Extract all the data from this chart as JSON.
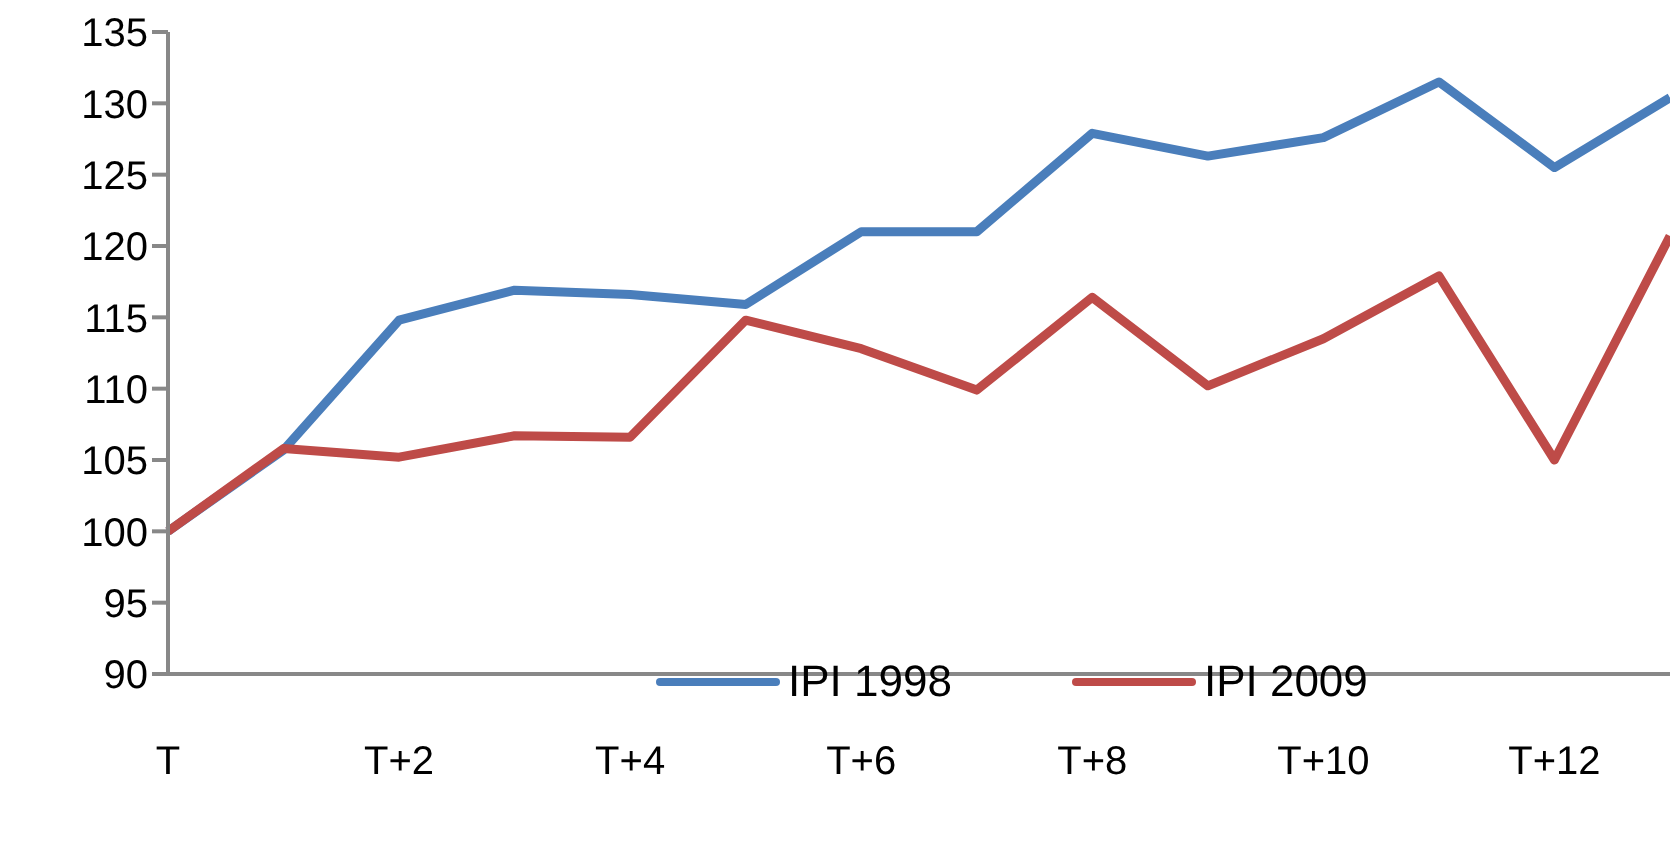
{
  "chart_data": {
    "type": "line",
    "categories": [
      "T",
      null,
      "T+2",
      null,
      "T+4",
      null,
      "T+6",
      null,
      "T+8",
      null,
      "T+10",
      null,
      "T+12",
      null
    ],
    "series": [
      {
        "name": "IPI 1998",
        "color": "#4a7ebb",
        "values": [
          100,
          105.7,
          114.8,
          116.9,
          116.6,
          115.9,
          121.0,
          121.0,
          127.9,
          126.3,
          127.6,
          131.5,
          125.5,
          130.4
        ]
      },
      {
        "name": "IPI 2009",
        "color": "#be4b48",
        "values": [
          100,
          105.8,
          105.2,
          106.7,
          106.6,
          114.8,
          112.8,
          109.9,
          116.4,
          110.2,
          113.5,
          117.9,
          105.0,
          120.7
        ]
      }
    ],
    "ylim": [
      90,
      135
    ],
    "yticks": [
      90,
      95,
      100,
      105,
      110,
      115,
      120,
      125,
      130,
      135
    ],
    "grid": false,
    "legend": "bottom",
    "marker": "none",
    "line_style": "solid"
  }
}
